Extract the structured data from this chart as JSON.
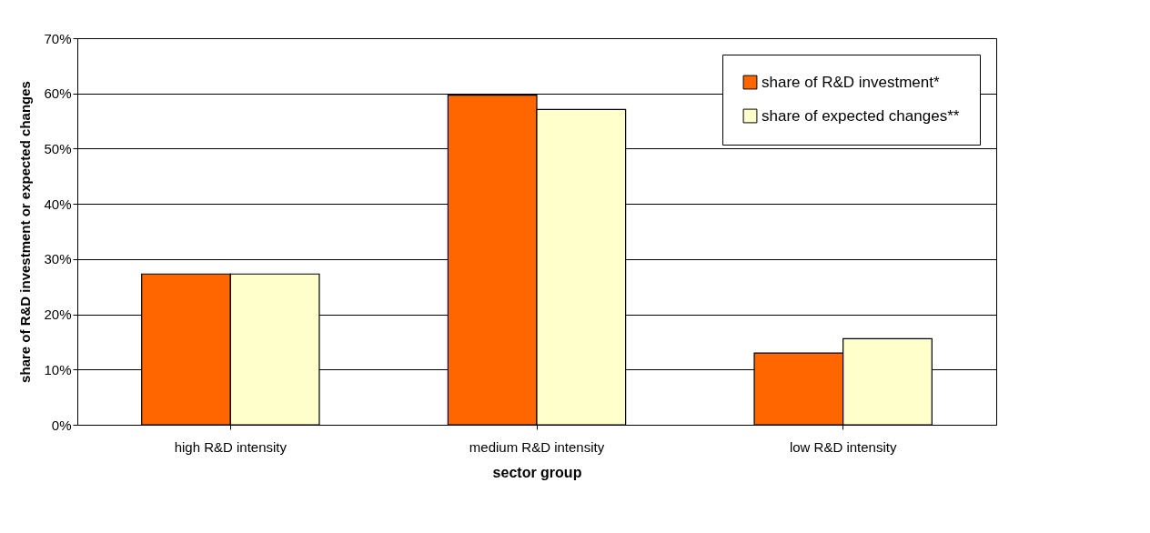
{
  "chart_data": {
    "type": "bar",
    "xlabel": "sector group",
    "ylabel": "share of R&D investment or expected changes",
    "categories": [
      "high R&D intensity",
      "medium R&D intensity",
      "low  R&D intensity"
    ],
    "series": [
      {
        "name": "share of R&D investment*",
        "color": "#ff6600",
        "values": [
          27.3,
          59.7,
          13.0
        ]
      },
      {
        "name": "share of expected changes**",
        "color": "#ffffcc",
        "values": [
          27.3,
          57.1,
          15.6
        ]
      }
    ],
    "ylim": [
      0,
      70
    ],
    "yticks": [
      {
        "value": 0,
        "label": "0%"
      },
      {
        "value": 10,
        "label": "10%"
      },
      {
        "value": 20,
        "label": "20%"
      },
      {
        "value": 30,
        "label": "30%"
      },
      {
        "value": 40,
        "label": "40%"
      },
      {
        "value": 50,
        "label": "50%"
      },
      {
        "value": 60,
        "label": "60%"
      },
      {
        "value": 70,
        "label": "70%"
      }
    ],
    "grid": "y",
    "legend": "top right"
  }
}
